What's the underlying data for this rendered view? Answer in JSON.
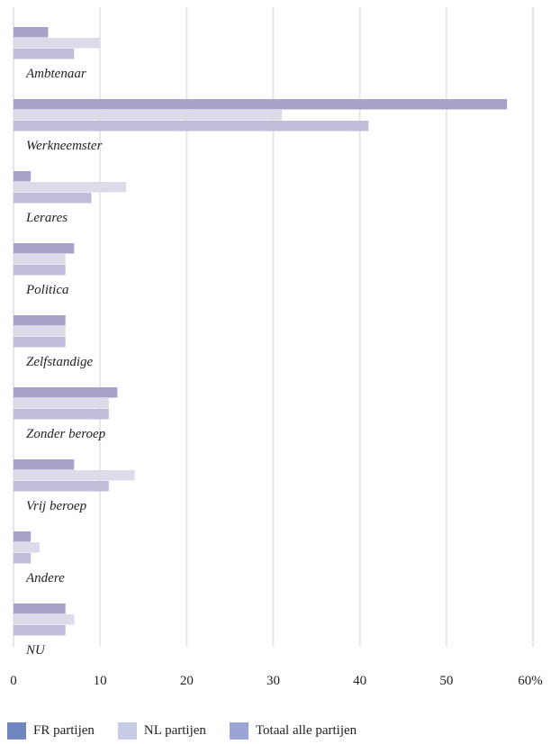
{
  "chart_data": {
    "type": "bar",
    "orientation": "horizontal",
    "title": "",
    "xlabel": "",
    "ylabel": "",
    "categories": [
      "Ambtenaar",
      "Werkneemster",
      "Lerares",
      "Politica",
      "Zelfstandige",
      "Zonder beroep",
      "Vrij beroep",
      "Andere",
      "NU"
    ],
    "series": [
      {
        "name": "FR partijen",
        "values": [
          4,
          57,
          2,
          7,
          6,
          12,
          7,
          2,
          6
        ]
      },
      {
        "name": "NL partijen",
        "values": [
          10,
          31,
          13,
          6,
          6,
          11,
          14,
          3,
          7
        ]
      },
      {
        "name": "Totaal alle partijen",
        "values": [
          7,
          41,
          9,
          6,
          6,
          11,
          11,
          2,
          6
        ]
      }
    ],
    "xlim": [
      0,
      60
    ],
    "xticks": [
      0,
      10,
      20,
      30,
      40,
      50,
      60
    ],
    "xtick_labels": [
      "0",
      "10",
      "20",
      "30",
      "40",
      "50",
      "60%"
    ],
    "grid": "vertical",
    "legend_position": "bottom-left"
  },
  "colors": {
    "bars": [
      "#a9a2c9",
      "#dcdbe9",
      "#c1bcd9"
    ],
    "legend_swatches": [
      "#6f86c1",
      "#c6cbe6",
      "#9ba5d5"
    ],
    "gridline": "#e6e6ec",
    "text": "#222222"
  }
}
